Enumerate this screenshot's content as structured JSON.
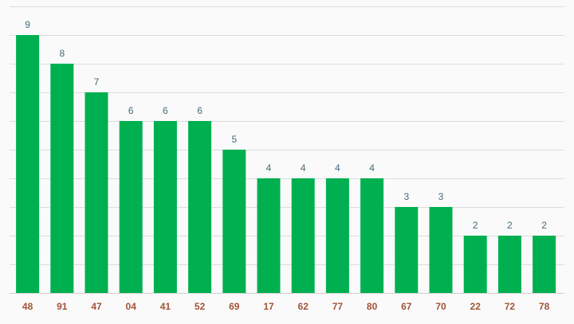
{
  "chart_data": {
    "type": "bar",
    "title": "",
    "xlabel": "",
    "ylabel": "",
    "categories": [
      "48",
      "91",
      "47",
      "04",
      "41",
      "52",
      "69",
      "17",
      "62",
      "77",
      "80",
      "67",
      "70",
      "22",
      "72",
      "78"
    ],
    "values": [
      9,
      8,
      7,
      6,
      6,
      6,
      5,
      4,
      4,
      4,
      4,
      3,
      3,
      2,
      2,
      2
    ],
    "ylim": [
      0,
      10
    ],
    "grid": true,
    "bar_color": "#00b050",
    "value_label_color": "#456b79",
    "category_label_color": "#a05438",
    "grid_color": "#dddddd",
    "background": "#fafafa"
  }
}
